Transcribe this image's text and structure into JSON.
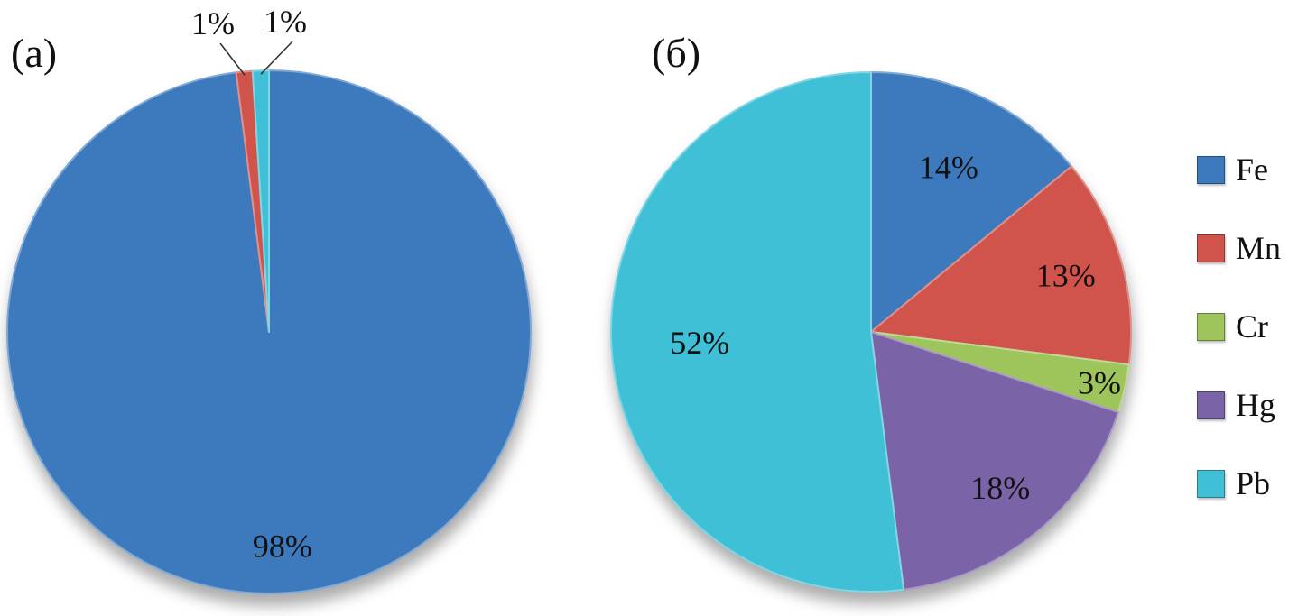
{
  "panels": [
    {
      "label": "(а)"
    },
    {
      "label": "(б)"
    }
  ],
  "chart_data": [
    {
      "type": "pie",
      "panel": "(а)",
      "categories": [
        "Fe",
        "Mn",
        "Pb"
      ],
      "values": [
        98,
        1,
        1
      ],
      "labels": [
        "98%",
        "1%",
        "1%"
      ],
      "colors": [
        "#3d7abd",
        "#d0534c",
        "#3fc0d6"
      ],
      "start_angle_deg": 0,
      "direction": "clockwise",
      "legend_position": "none"
    },
    {
      "type": "pie",
      "panel": "(б)",
      "categories": [
        "Fe",
        "Mn",
        "Cr",
        "Hg",
        "Pb"
      ],
      "values": [
        14,
        13,
        3,
        18,
        52
      ],
      "labels": [
        "14%",
        "13%",
        "3%",
        "18%",
        "52%"
      ],
      "colors": [
        "#3d7abd",
        "#d0534c",
        "#9ec45c",
        "#7b63a8",
        "#3fc0d6"
      ],
      "start_angle_deg": 0,
      "direction": "clockwise",
      "legend_position": "right"
    }
  ],
  "legend": {
    "items": [
      {
        "label": "Fe",
        "color": "#3d7abd"
      },
      {
        "label": "Mn",
        "color": "#d0534c"
      },
      {
        "label": "Cr",
        "color": "#9ec45c"
      },
      {
        "label": "Hg",
        "color": "#7b63a8"
      },
      {
        "label": "Pb",
        "color": "#3fc0d6"
      }
    ]
  },
  "style": {
    "label_color": "#111111",
    "leader_line_color": "#333333"
  }
}
